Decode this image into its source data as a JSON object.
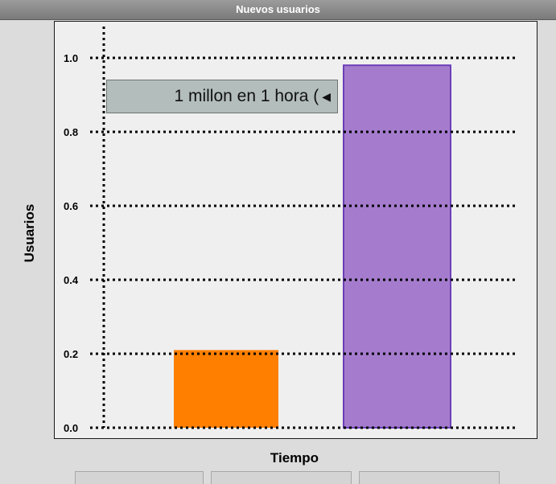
{
  "window": {
    "title": "Nuevos usuarios"
  },
  "annotation": {
    "text": "1 millon en 1 hora (",
    "icon": "left-triangle-icon"
  },
  "colors": {
    "bar_1": "#ff7f00",
    "bar_2": "#a57ccd",
    "bar_2_border": "#6b3fb8",
    "grid": "#000000"
  },
  "chart_data": {
    "type": "bar",
    "title": "Nuevos usuarios",
    "xlabel": "Tiempo",
    "ylabel": "Usuarios",
    "categories": [
      "",
      ""
    ],
    "values": [
      0.21,
      0.98
    ],
    "ylim": [
      0.0,
      1.0
    ],
    "yticks": [
      "0.0",
      "0.2",
      "0.4",
      "0.6",
      "0.8",
      "1.0"
    ],
    "grid": true,
    "grid_style": "dotted"
  }
}
